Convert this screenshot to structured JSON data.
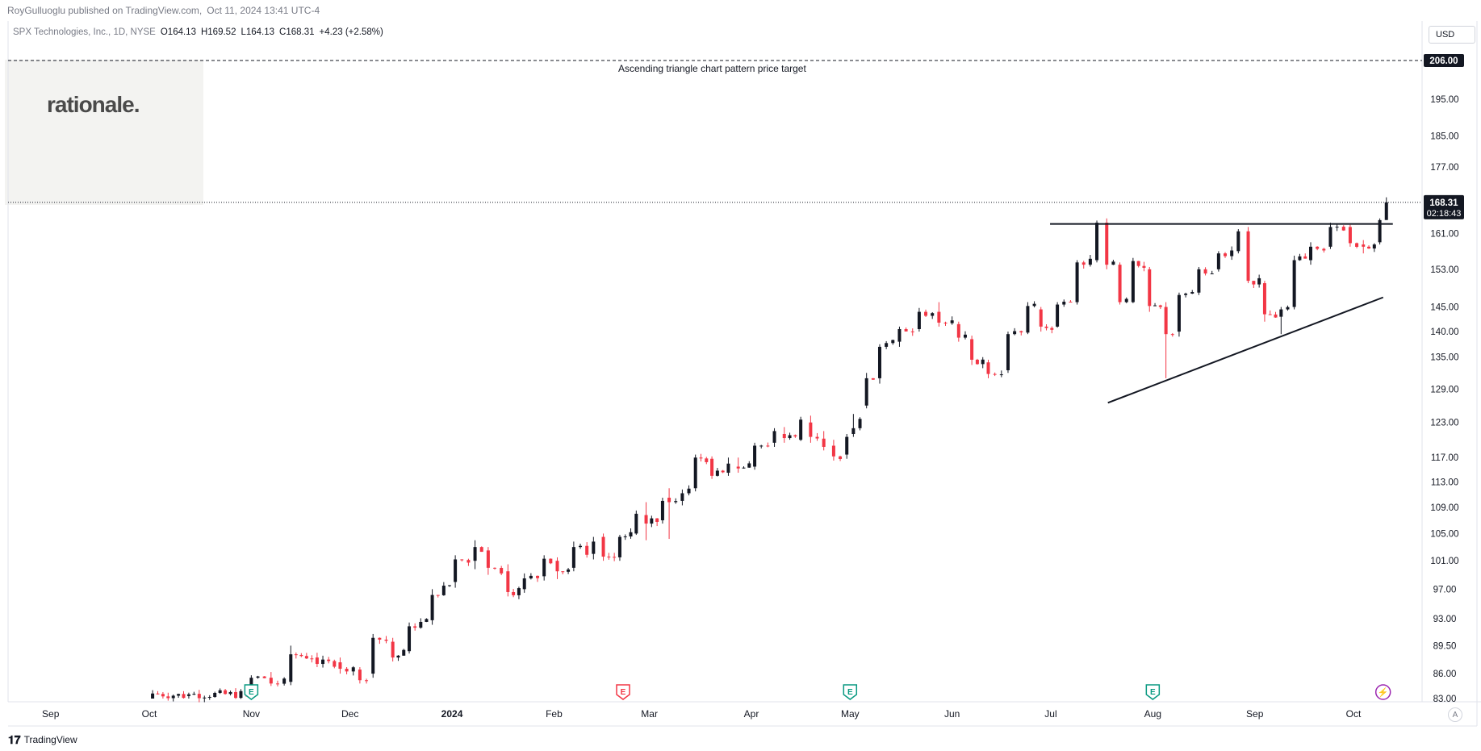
{
  "header": {
    "publisher": "RoyGulluoglu published on TradingView.com,",
    "timestamp": "Oct 11, 2024 13:41 UTC-4"
  },
  "legend": {
    "symbol": "SPX Technologies, Inc., 1D, NYSE",
    "open": "O164.13",
    "high": "H169.52",
    "low": "L164.13",
    "close": "C168.31",
    "change": "+4.23 (+2.58%)"
  },
  "logo": {
    "text": "rationale."
  },
  "currency": "USD",
  "annotation": {
    "text": "Ascending triangle chart pattern price target",
    "price": 206.0,
    "price_label": "206.00"
  },
  "last_price": {
    "label": "168.31",
    "countdown": "02:18:43"
  },
  "footer": {
    "brand_icon": "tradingview-logo",
    "brand": "TradingView"
  },
  "auto_scale": "A",
  "colors": {
    "up": "#131722",
    "down": "#f23645",
    "earnings": "#089981",
    "earnings_red": "#f23645",
    "dividend": "#9c27b0"
  },
  "chart_data": {
    "type": "candlestick",
    "title": "SPX Technologies, Inc., 1D, NYSE",
    "y_tick_labels": [
      "206.00",
      "195.00",
      "185.00",
      "177.00",
      "168.31",
      "161.00",
      "153.00",
      "145.00",
      "140.00",
      "135.00",
      "129.00",
      "123.00",
      "117.00",
      "113.00",
      "109.00",
      "105.00",
      "101.00",
      "97.00",
      "93.00",
      "89.50",
      "86.00",
      "83.00"
    ],
    "y_ticks": [
      195,
      185,
      177,
      161,
      153,
      145,
      140,
      135,
      129,
      123,
      117,
      113,
      109,
      105,
      101,
      97,
      93,
      89.5,
      86,
      83
    ],
    "x_labels": [
      "Sep",
      "Oct",
      "Nov",
      "Dec",
      "2024",
      "Feb",
      "Mar",
      "Apr",
      "May",
      "Jun",
      "Jul",
      "Aug",
      "Sep",
      "Oct"
    ],
    "ylim": [
      83,
      210
    ],
    "log_scale": true,
    "grid": false,
    "price_series": [
      [
        "2023-10-02",
        83.0,
        84.0,
        83.0,
        83.6
      ],
      [
        "2023-10-13",
        83.3,
        83.7,
        83.0,
        83.5
      ],
      [
        "2023-11-01",
        83.5,
        85.8,
        83.0,
        85.5
      ],
      [
        "2023-11-07",
        85.5,
        86.2,
        84.5,
        84.8
      ],
      [
        "2023-11-13",
        85.0,
        89.5,
        84.6,
        88.4
      ],
      [
        "2023-11-21",
        88.0,
        88.6,
        86.8,
        87.2
      ],
      [
        "2023-11-28",
        87.4,
        88.0,
        86.0,
        86.6
      ],
      [
        "2023-12-04",
        86.5,
        86.8,
        84.8,
        85.2
      ],
      [
        "2023-12-08",
        86.0,
        91.0,
        85.5,
        90.5
      ],
      [
        "2023-12-14",
        90.0,
        90.5,
        87.5,
        88.0
      ],
      [
        "2023-12-19",
        88.8,
        92.5,
        88.5,
        92.0
      ],
      [
        "2023-12-26",
        92.8,
        97.0,
        92.2,
        96.2
      ],
      [
        "2024-01-02",
        98.0,
        101.8,
        97.2,
        101.2
      ],
      [
        "2024-01-08",
        101.0,
        104.0,
        99.8,
        103.0
      ],
      [
        "2024-01-12",
        102.5,
        103.0,
        99.0,
        100.0
      ],
      [
        "2024-01-18",
        99.5,
        100.5,
        96.0,
        96.6
      ],
      [
        "2024-01-23",
        97.0,
        99.2,
        96.5,
        98.5
      ],
      [
        "2024-01-29",
        98.8,
        101.8,
        98.2,
        101.3
      ],
      [
        "2024-02-02",
        101.0,
        101.5,
        98.4,
        99.5
      ],
      [
        "2024-02-07",
        100.0,
        103.8,
        99.5,
        103.0
      ],
      [
        "2024-02-13",
        102.0,
        104.5,
        101.2,
        103.8
      ],
      [
        "2024-02-16",
        104.5,
        105.0,
        101.0,
        101.6
      ],
      [
        "2024-02-21",
        101.5,
        104.8,
        101.0,
        104.5
      ],
      [
        "2024-02-26",
        105.0,
        108.5,
        104.8,
        108.0
      ],
      [
        "2024-02-29",
        107.8,
        109.8,
        104.0,
        106.5
      ],
      [
        "2024-03-05",
        107.0,
        110.5,
        106.5,
        110.0
      ],
      [
        "2024-03-07",
        110.5,
        112.0,
        104.2,
        109.8
      ],
      [
        "2024-03-11",
        110.0,
        111.8,
        109.3,
        111.2
      ],
      [
        "2024-03-15",
        112.0,
        117.5,
        111.5,
        117.0
      ],
      [
        "2024-03-20",
        116.8,
        117.2,
        113.5,
        114.0
      ],
      [
        "2024-03-25",
        114.5,
        117.0,
        114.0,
        116.0
      ],
      [
        "2024-03-28",
        115.5,
        117.0,
        114.5,
        115.2
      ],
      [
        "2024-04-02",
        115.5,
        119.5,
        115.0,
        119.0
      ],
      [
        "2024-04-08",
        119.5,
        122.0,
        118.8,
        121.5
      ],
      [
        "2024-04-11",
        121.0,
        122.2,
        119.5,
        120.3
      ],
      [
        "2024-04-16",
        120.0,
        124.0,
        119.8,
        123.5
      ],
      [
        "2024-04-19",
        123.0,
        124.2,
        119.5,
        120.5
      ],
      [
        "2024-04-23",
        120.2,
        121.5,
        118.2,
        118.8
      ],
      [
        "2024-04-26",
        119.0,
        120.0,
        116.5,
        117.2
      ],
      [
        "2024-04-30",
        117.5,
        121.0,
        116.8,
        120.5
      ],
      [
        "2024-05-02",
        121.0,
        124.5,
        120.5,
        122.0
      ],
      [
        "2024-05-06",
        126.0,
        132.0,
        125.5,
        131.0
      ],
      [
        "2024-05-10",
        131.0,
        137.5,
        130.0,
        137.0
      ],
      [
        "2024-05-16",
        138.0,
        141.0,
        137.0,
        140.5
      ],
      [
        "2024-05-22",
        140.5,
        144.8,
        140.0,
        144.0
      ],
      [
        "2024-05-28",
        144.0,
        146.0,
        141.0,
        141.8
      ],
      [
        "2024-06-03",
        141.5,
        142.0,
        138.0,
        138.8
      ],
      [
        "2024-06-07",
        138.5,
        139.2,
        133.5,
        134.5
      ],
      [
        "2024-06-12",
        134.0,
        134.5,
        131.0,
        131.8
      ],
      [
        "2024-06-18",
        132.5,
        140.0,
        132.0,
        139.5
      ],
      [
        "2024-06-24",
        139.8,
        146.0,
        139.5,
        145.2
      ],
      [
        "2024-06-28",
        144.5,
        145.0,
        140.0,
        141.0
      ],
      [
        "2024-07-03",
        141.0,
        146.0,
        140.8,
        145.5
      ],
      [
        "2024-07-09",
        146.0,
        155.0,
        145.5,
        154.5
      ],
      [
        "2024-07-15",
        155.0,
        164.0,
        154.5,
        163.5
      ],
      [
        "2024-07-18",
        163.5,
        164.5,
        153.0,
        154.0
      ],
      [
        "2024-07-22",
        154.0,
        154.5,
        145.5,
        146.0
      ],
      [
        "2024-07-26",
        146.0,
        155.5,
        145.8,
        154.8
      ],
      [
        "2024-07-31",
        153.0,
        153.5,
        144.0,
        145.2
      ],
      [
        "2024-08-05",
        145.0,
        146.0,
        131.0,
        139.5
      ],
      [
        "2024-08-09",
        140.0,
        148.0,
        139.0,
        147.5
      ],
      [
        "2024-08-15",
        148.0,
        153.5,
        147.5,
        153.0
      ],
      [
        "2024-08-21",
        153.0,
        157.0,
        152.5,
        156.5
      ],
      [
        "2024-08-27",
        157.0,
        162.0,
        156.5,
        161.5
      ],
      [
        "2024-08-30",
        161.5,
        162.5,
        150.0,
        150.5
      ],
      [
        "2024-09-04",
        150.0,
        150.5,
        142.0,
        143.5
      ],
      [
        "2024-09-09",
        143.0,
        145.0,
        139.5,
        144.5
      ],
      [
        "2024-09-13",
        145.0,
        156.0,
        144.5,
        155.0
      ],
      [
        "2024-09-18",
        155.0,
        159.0,
        154.0,
        158.0
      ],
      [
        "2024-09-24",
        158.0,
        163.5,
        157.5,
        162.5
      ],
      [
        "2024-09-30",
        162.5,
        163.0,
        158.0,
        158.8
      ],
      [
        "2024-10-04",
        158.5,
        159.5,
        156.5,
        158.0
      ],
      [
        "2024-10-09",
        159.0,
        164.5,
        158.5,
        164.1
      ],
      [
        "2024-10-11",
        164.13,
        169.52,
        164.13,
        168.31
      ]
    ],
    "resistance_line": {
      "from": [
        "2024-07-15",
        163.2
      ],
      "to": [
        "2024-10-11",
        163.2
      ]
    },
    "support_line": {
      "from": [
        "2024-07-11",
        126.5
      ],
      "to": [
        "2024-10-11",
        147.0
      ]
    },
    "target_line_price": 206.0,
    "event_markers": [
      {
        "date": "2023-11-01",
        "type": "earnings",
        "symbol": "E"
      },
      {
        "date": "2024-02-22",
        "type": "earnings",
        "symbol": "E"
      },
      {
        "date": "2024-05-01",
        "type": "earnings",
        "symbol": "E"
      },
      {
        "date": "2024-08-01",
        "type": "earnings",
        "symbol": "E"
      },
      {
        "date": "2024-10-10",
        "type": "dividend",
        "symbol": "⚡"
      }
    ]
  }
}
